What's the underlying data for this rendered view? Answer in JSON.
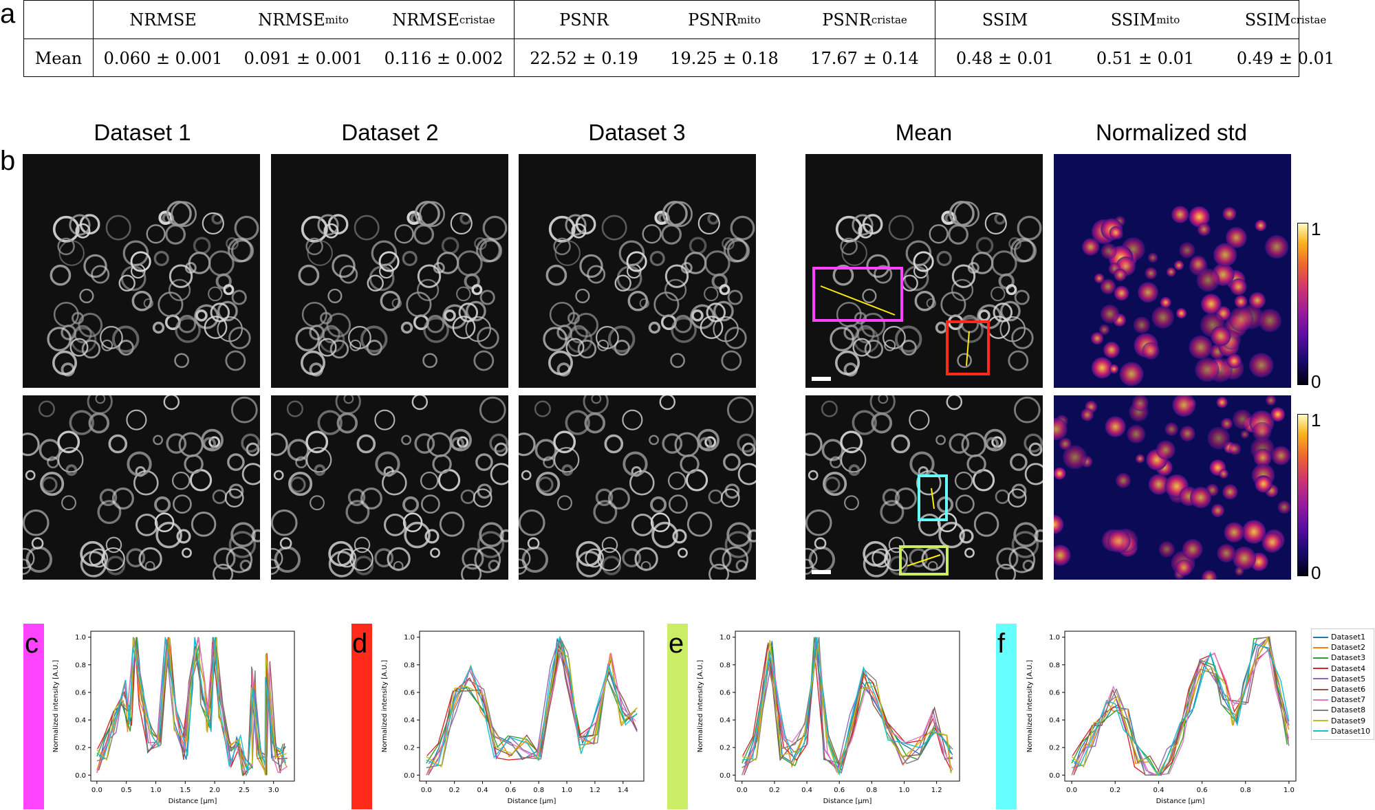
{
  "panel_labels": {
    "a": "a",
    "b": "b",
    "c": "c",
    "d": "d",
    "e": "e",
    "f": "f"
  },
  "table": {
    "headers": [
      {
        "base": "NRMSE",
        "sub": ""
      },
      {
        "base": "NRMSE",
        "sub": "mito"
      },
      {
        "base": "NRMSE",
        "sub": "cristae"
      },
      {
        "base": "PSNR",
        "sub": ""
      },
      {
        "base": "PSNR",
        "sub": "mito"
      },
      {
        "base": "PSNR",
        "sub": "cristae"
      },
      {
        "base": "SSIM",
        "sub": ""
      },
      {
        "base": "SSIM",
        "sub": "mito"
      },
      {
        "base": "SSIM",
        "sub": "cristae"
      }
    ],
    "row_label": "Mean",
    "values": [
      "0.060 ± 0.001",
      "0.091 ± 0.001",
      "0.116 ± 0.002",
      "22.52 ± 0.19",
      "19.25 ± 0.18",
      "17.67 ± 0.14",
      "0.48 ± 0.01",
      "0.51 ± 0.01",
      "0.49 ± 0.01"
    ]
  },
  "image_columns": [
    "Dataset 1",
    "Dataset 2",
    "Dataset 3",
    "Mean",
    "Normalized std"
  ],
  "colorbar": {
    "max": "1",
    "min": "0"
  },
  "roi_colors": {
    "c": "#ff44ff",
    "d": "#ff2a1a",
    "e": "#ccee66",
    "f": "#66ffff"
  },
  "legend": [
    "Dataset1",
    "Dataset2",
    "Dataset3",
    "Dataset4",
    "Dataset5",
    "Dataset6",
    "Dataset7",
    "Dataset8",
    "Dataset9",
    "Dataset10"
  ],
  "series_colors": [
    "#1f77b4",
    "#ff7f0e",
    "#2ca02c",
    "#d62728",
    "#9467bd",
    "#8c564b",
    "#e377c2",
    "#7f7f7f",
    "#bcbd22",
    "#17becf"
  ],
  "chart_data": [
    {
      "type": "line",
      "panel": "c",
      "xlabel": "Distance [µm]",
      "ylabel": "Normalized intensity [A.U.]",
      "xlim": [
        0.0,
        3.25
      ],
      "ylim": [
        0.0,
        1.0
      ],
      "xticks": [
        "0.0",
        "0.5",
        "1.0",
        "1.5",
        "2.0",
        "2.5",
        "3.0"
      ],
      "yticks": [
        "0.0",
        "0.2",
        "0.4",
        "0.6",
        "0.8",
        "1.0"
      ],
      "series_names": [
        "Dataset1",
        "Dataset2",
        "Dataset3",
        "Dataset4",
        "Dataset5",
        "Dataset6",
        "Dataset7",
        "Dataset8",
        "Dataset9",
        "Dataset10"
      ],
      "base_profile": {
        "x": [
          0.0,
          0.15,
          0.3,
          0.45,
          0.55,
          0.65,
          0.75,
          0.9,
          1.05,
          1.2,
          1.35,
          1.5,
          1.6,
          1.7,
          1.8,
          1.9,
          2.0,
          2.1,
          2.25,
          2.4,
          2.5,
          2.6,
          2.65,
          2.75,
          2.85,
          2.9,
          3.0,
          3.1,
          3.2
        ],
        "y": [
          0.1,
          0.2,
          0.4,
          0.6,
          0.4,
          1.0,
          0.6,
          0.25,
          0.3,
          1.0,
          0.4,
          0.2,
          0.6,
          0.95,
          0.6,
          0.4,
          1.0,
          0.5,
          0.15,
          0.3,
          0.05,
          0.05,
          0.7,
          0.1,
          0.05,
          0.8,
          0.2,
          0.1,
          0.15
        ]
      }
    },
    {
      "type": "line",
      "panel": "d",
      "xlabel": "Distance [µm]",
      "ylabel": "Normalized intensity [A.U.]",
      "xlim": [
        0.0,
        1.5
      ],
      "ylim": [
        0.0,
        1.0
      ],
      "xticks": [
        "0.0",
        "0.2",
        "0.4",
        "0.6",
        "0.8",
        "1.0",
        "1.2",
        "1.4"
      ],
      "yticks": [
        "0.0",
        "0.2",
        "0.4",
        "0.6",
        "0.8",
        "1.0"
      ],
      "series_names": [
        "Dataset1",
        "Dataset2",
        "Dataset3",
        "Dataset4",
        "Dataset5",
        "Dataset6",
        "Dataset7",
        "Dataset8",
        "Dataset9",
        "Dataset10"
      ],
      "base_profile": {
        "x": [
          0.0,
          0.1,
          0.2,
          0.3,
          0.4,
          0.5,
          0.6,
          0.7,
          0.8,
          0.9,
          0.95,
          1.0,
          1.1,
          1.2,
          1.3,
          1.4,
          1.5
        ],
        "y": [
          0.05,
          0.15,
          0.55,
          0.7,
          0.55,
          0.2,
          0.2,
          0.2,
          0.2,
          0.7,
          1.0,
          0.8,
          0.2,
          0.3,
          0.8,
          0.45,
          0.4
        ]
      }
    },
    {
      "type": "line",
      "panel": "e",
      "xlabel": "Distance [µm]",
      "ylabel": "Normalized intensity [A.U.]",
      "xlim": [
        0.0,
        1.3
      ],
      "ylim": [
        0.0,
        1.0
      ],
      "xticks": [
        "0.0",
        "0.2",
        "0.4",
        "0.6",
        "0.8",
        "1.0",
        "1.2"
      ],
      "yticks": [
        "0.0",
        "0.2",
        "0.4",
        "0.6",
        "0.8",
        "1.0"
      ],
      "series_names": [
        "Dataset1",
        "Dataset2",
        "Dataset3",
        "Dataset4",
        "Dataset5",
        "Dataset6",
        "Dataset7",
        "Dataset8",
        "Dataset9",
        "Dataset10"
      ],
      "base_profile": {
        "x": [
          0.0,
          0.08,
          0.17,
          0.25,
          0.32,
          0.4,
          0.46,
          0.52,
          0.6,
          0.68,
          0.75,
          0.82,
          0.9,
          1.0,
          1.1,
          1.18,
          1.25,
          1.3
        ],
        "y": [
          0.05,
          0.2,
          0.9,
          0.2,
          0.15,
          0.3,
          1.0,
          0.2,
          0.1,
          0.35,
          0.7,
          0.6,
          0.3,
          0.15,
          0.2,
          0.4,
          0.2,
          0.1
        ]
      }
    },
    {
      "type": "line",
      "panel": "f",
      "xlabel": "Distance [µm]",
      "ylabel": "Normalized intensity [A.U.]",
      "xlim": [
        0.0,
        1.0
      ],
      "ylim": [
        0.0,
        1.0
      ],
      "xticks": [
        "0.0",
        "0.2",
        "0.4",
        "0.6",
        "0.8",
        "1.0"
      ],
      "yticks": [
        "0.0",
        "0.2",
        "0.4",
        "0.6",
        "0.8",
        "1.0"
      ],
      "series_names": [
        "Dataset1",
        "Dataset2",
        "Dataset3",
        "Dataset4",
        "Dataset5",
        "Dataset6",
        "Dataset7",
        "Dataset8",
        "Dataset9",
        "Dataset10"
      ],
      "base_profile": {
        "x": [
          0.0,
          0.05,
          0.1,
          0.15,
          0.2,
          0.25,
          0.3,
          0.35,
          0.4,
          0.45,
          0.5,
          0.55,
          0.6,
          0.65,
          0.7,
          0.75,
          0.8,
          0.85,
          0.9,
          0.95,
          1.0
        ],
        "y": [
          0.05,
          0.15,
          0.3,
          0.45,
          0.55,
          0.4,
          0.15,
          0.05,
          0.02,
          0.1,
          0.3,
          0.55,
          0.75,
          0.8,
          0.6,
          0.45,
          0.6,
          0.9,
          1.0,
          0.7,
          0.3
        ]
      }
    }
  ]
}
